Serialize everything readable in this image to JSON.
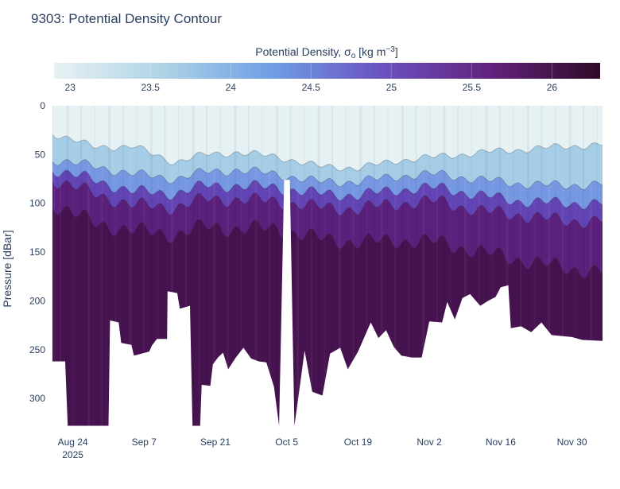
{
  "chart_data": {
    "type": "heatmap",
    "title": "9303: Potential Density Contour",
    "colorbar": {
      "title_prefix": "Potential Density, σ",
      "title_sub": "o",
      "title_unit_pre": " [kg m",
      "title_sup": "−3",
      "title_unit_post": "]",
      "range": [
        22.9,
        26.3
      ],
      "ticks": [
        23,
        23.5,
        24,
        24.5,
        25,
        25.5,
        26
      ],
      "tick_labels": [
        "23",
        "23.5",
        "24",
        "24.5",
        "25",
        "25.5",
        "26"
      ],
      "colors": [
        "#e8f1f3",
        "#aed3e6",
        "#6e9ee4",
        "#6a52c0",
        "#62217c",
        "#2e0a26"
      ]
    },
    "yaxis": {
      "label": "Pressure [dBar]",
      "range": [
        0,
        330
      ],
      "reversed": true,
      "ticks": [
        0,
        50,
        100,
        150,
        200,
        250,
        300
      ],
      "tick_labels": [
        "0",
        "50",
        "100",
        "150",
        "200",
        "250",
        "300"
      ]
    },
    "xaxis": {
      "range_days": [
        0,
        108
      ],
      "ticks": [
        {
          "day": 4,
          "label": "Aug 24",
          "sublabel": "2025"
        },
        {
          "day": 18,
          "label": "Sep 7",
          "sublabel": ""
        },
        {
          "day": 32,
          "label": "Sep 21",
          "sublabel": ""
        },
        {
          "day": 46,
          "label": "Oct 5",
          "sublabel": ""
        },
        {
          "day": 60,
          "label": "Oct 19",
          "sublabel": ""
        },
        {
          "day": 74,
          "label": "Nov 2",
          "sublabel": ""
        },
        {
          "day": 88,
          "label": "Nov 16",
          "sublabel": ""
        },
        {
          "day": 102,
          "label": "Nov 30",
          "sublabel": ""
        }
      ]
    },
    "profile_max_pressure": [
      {
        "day": 0,
        "p": 262
      },
      {
        "day": 2.5,
        "p": 262
      },
      {
        "day": 3,
        "p": 328
      },
      {
        "day": 11,
        "p": 328
      },
      {
        "day": 11.3,
        "p": 220
      },
      {
        "day": 13,
        "p": 222
      },
      {
        "day": 13.5,
        "p": 243
      },
      {
        "day": 15.5,
        "p": 245
      },
      {
        "day": 16,
        "p": 256
      },
      {
        "day": 19,
        "p": 252
      },
      {
        "day": 19.5,
        "p": 246
      },
      {
        "day": 20.5,
        "p": 239
      },
      {
        "day": 22.5,
        "p": 239
      },
      {
        "day": 22.6,
        "p": 190
      },
      {
        "day": 24.5,
        "p": 192
      },
      {
        "day": 25,
        "p": 208
      },
      {
        "day": 27,
        "p": 205
      },
      {
        "day": 27.5,
        "p": 328
      },
      {
        "day": 29,
        "p": 328
      },
      {
        "day": 29.3,
        "p": 286
      },
      {
        "day": 31,
        "p": 287
      },
      {
        "day": 31.5,
        "p": 265
      },
      {
        "day": 32.5,
        "p": 258
      },
      {
        "day": 33.5,
        "p": 253
      },
      {
        "day": 34.5,
        "p": 270
      },
      {
        "day": 36,
        "p": 258
      },
      {
        "day": 37.5,
        "p": 248
      },
      {
        "day": 39,
        "p": 259
      },
      {
        "day": 40.5,
        "p": 262
      },
      {
        "day": 42,
        "p": 263
      },
      {
        "day": 43.5,
        "p": 288
      },
      {
        "day": 44.5,
        "p": 328
      },
      {
        "day": 45.5,
        "p": 76
      },
      {
        "day": 46.6,
        "p": 76
      },
      {
        "day": 47.5,
        "p": 328
      },
      {
        "day": 48.5,
        "p": 290
      },
      {
        "day": 49.5,
        "p": 251
      },
      {
        "day": 51,
        "p": 293
      },
      {
        "day": 53,
        "p": 297
      },
      {
        "day": 54.5,
        "p": 254
      },
      {
        "day": 56.5,
        "p": 248
      },
      {
        "day": 58,
        "p": 270
      },
      {
        "day": 60,
        "p": 252
      },
      {
        "day": 62.5,
        "p": 222
      },
      {
        "day": 64,
        "p": 238
      },
      {
        "day": 65.5,
        "p": 230
      },
      {
        "day": 67,
        "p": 247
      },
      {
        "day": 68.5,
        "p": 256
      },
      {
        "day": 70.5,
        "p": 258
      },
      {
        "day": 72.5,
        "p": 258
      },
      {
        "day": 74,
        "p": 221
      },
      {
        "day": 76.5,
        "p": 222
      },
      {
        "day": 77.5,
        "p": 201
      },
      {
        "day": 79,
        "p": 219
      },
      {
        "day": 80.5,
        "p": 197
      },
      {
        "day": 82,
        "p": 193
      },
      {
        "day": 84,
        "p": 205
      },
      {
        "day": 85.5,
        "p": 200
      },
      {
        "day": 87,
        "p": 196
      },
      {
        "day": 88,
        "p": 186
      },
      {
        "day": 89.5,
        "p": 184
      },
      {
        "day": 90,
        "p": 228
      },
      {
        "day": 92,
        "p": 226
      },
      {
        "day": 94,
        "p": 232
      },
      {
        "day": 96,
        "p": 222
      },
      {
        "day": 98,
        "p": 235
      },
      {
        "day": 100,
        "p": 236
      },
      {
        "day": 102,
        "p": 237
      },
      {
        "day": 104,
        "p": 240
      },
      {
        "day": 108,
        "p": 241
      }
    ],
    "layer_depths": {
      "sigma_23_5": {
        "description": "mixed-layer (upper light zone) base pressure along time",
        "days": [
          0,
          8,
          16,
          24,
          30,
          36,
          44,
          52,
          60,
          68,
          76,
          84,
          92,
          100,
          108
        ],
        "values": [
          28,
          42,
          42,
          58,
          50,
          48,
          52,
          62,
          64,
          56,
          52,
          48,
          45,
          42,
          40
        ]
      },
      "sigma_24": {
        "days": [
          0,
          8,
          16,
          24,
          30,
          36,
          44,
          52,
          60,
          68,
          76,
          84,
          92,
          100,
          108
        ],
        "values": [
          55,
          62,
          70,
          75,
          68,
          66,
          70,
          78,
          78,
          72,
          70,
          76,
          80,
          82,
          80
        ]
      },
      "sigma_24_5": {
        "days": [
          0,
          8,
          16,
          24,
          30,
          36,
          44,
          52,
          60,
          68,
          76,
          84,
          92,
          100,
          108
        ],
        "values": [
          65,
          76,
          88,
          90,
          82,
          82,
          84,
          90,
          92,
          86,
          84,
          92,
          98,
          100,
          100
        ]
      },
      "sigma_25": {
        "days": [
          0,
          8,
          16,
          24,
          30,
          36,
          44,
          52,
          60,
          68,
          76,
          84,
          92,
          100,
          108
        ],
        "values": [
          75,
          90,
          102,
          104,
          96,
          96,
          98,
          104,
          106,
          100,
          98,
          108,
          112,
          118,
          118
        ]
      },
      "sigma_25_5": {
        "days": [
          0,
          8,
          16,
          24,
          30,
          36,
          44,
          52,
          60,
          68,
          76,
          84,
          92,
          100,
          108
        ],
        "values": [
          100,
          120,
          128,
          132,
          124,
          126,
          126,
          136,
          140,
          138,
          140,
          150,
          158,
          166,
          170
        ]
      }
    }
  }
}
